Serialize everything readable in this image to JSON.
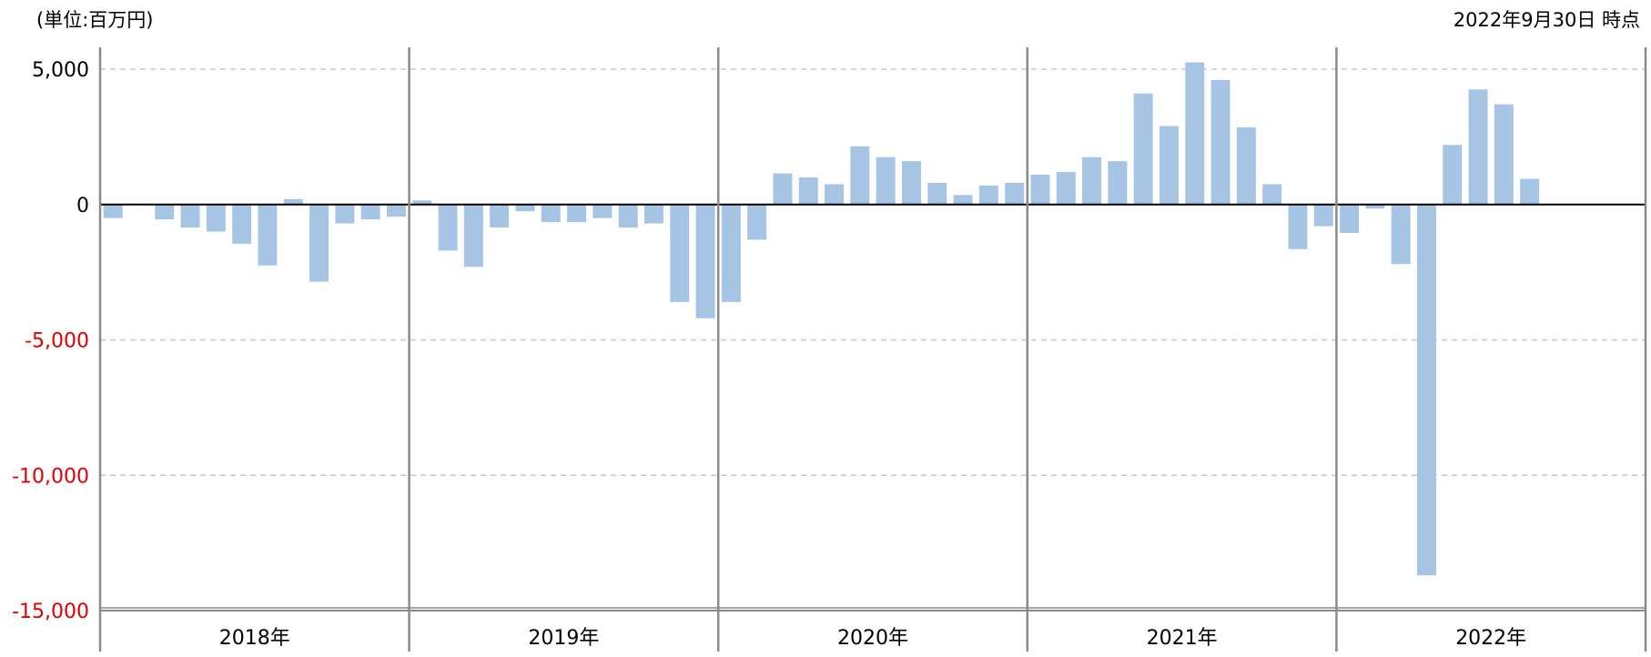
{
  "header": {
    "unit_label": "(単位:百万円)",
    "date_label": "2022年9月30日 時点"
  },
  "colors": {
    "bar": "#a6c4e4",
    "grid": "#c8c8c8",
    "axis": "#000000",
    "divider": "#8a8a8a",
    "tick_text_positive": "#000000",
    "tick_text_negative": "#e00000"
  },
  "chart_data": {
    "type": "bar",
    "title": "",
    "xlabel": "",
    "ylabel": "",
    "ylim": [
      -15000,
      5000
    ],
    "y_ticks": [
      {
        "value": 5000,
        "label": "5,000"
      },
      {
        "value": 0,
        "label": "0"
      },
      {
        "value": -5000,
        "label": "-5,000"
      },
      {
        "value": -10000,
        "label": "-10,000"
      },
      {
        "value": -15000,
        "label": "-15,000"
      }
    ],
    "grid": true,
    "groups": [
      {
        "label": "2018年",
        "values": [
          -500,
          null,
          -550,
          -850,
          -1000,
          -1450,
          -2250,
          200,
          -2850,
          -700,
          -550,
          -450
        ]
      },
      {
        "label": "2019年",
        "values": [
          150,
          -1700,
          -2300,
          -850,
          -250,
          -650,
          -650,
          -500,
          -850,
          -700,
          -3600,
          -4200
        ]
      },
      {
        "label": "2020年",
        "values": [
          -3600,
          -1300,
          1150,
          1000,
          750,
          2150,
          1750,
          1600,
          800,
          350,
          700,
          800
        ]
      },
      {
        "label": "2021年",
        "values": [
          1100,
          1200,
          1750,
          1600,
          4100,
          2900,
          5250,
          4600,
          2850,
          750,
          -1650,
          -800
        ]
      },
      {
        "label": "2022年",
        "values": [
          -1050,
          -150,
          -2200,
          -13700,
          2200,
          4250,
          3700,
          950,
          null,
          null,
          null,
          null
        ]
      }
    ]
  }
}
